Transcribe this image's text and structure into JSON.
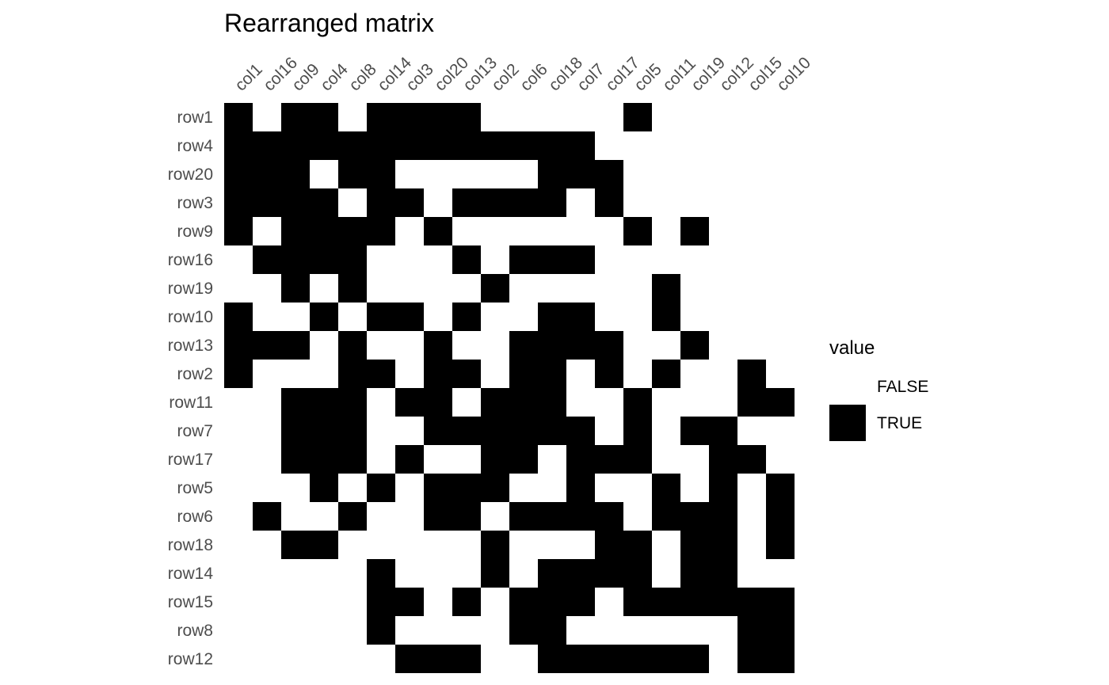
{
  "colors": {
    "true": "#000000",
    "false": "#ffffff",
    "tick_text": "#4d4d4d",
    "background": "#ffffff"
  },
  "chart_data": {
    "type": "heatmap",
    "title": "Rearranged matrix",
    "xlabel": "",
    "ylabel": "",
    "grid": false,
    "x_tick_position": "top",
    "legend_position": "right",
    "columns": [
      "col1",
      "col16",
      "col9",
      "col4",
      "col8",
      "col14",
      "col3",
      "col20",
      "col13",
      "col2",
      "col6",
      "col18",
      "col7",
      "col17",
      "col5",
      "col11",
      "col19",
      "col12",
      "col15",
      "col10"
    ],
    "rows": [
      "row1",
      "row4",
      "row20",
      "row3",
      "row9",
      "row16",
      "row19",
      "row10",
      "row13",
      "row2",
      "row11",
      "row7",
      "row17",
      "row5",
      "row6",
      "row18",
      "row14",
      "row15",
      "row8",
      "row12"
    ],
    "values": [
      [
        1,
        0,
        1,
        1,
        0,
        1,
        1,
        1,
        1,
        0,
        0,
        0,
        0,
        0,
        1,
        0,
        0,
        0,
        0,
        0
      ],
      [
        1,
        1,
        1,
        1,
        1,
        1,
        1,
        1,
        1,
        1,
        1,
        1,
        1,
        0,
        0,
        0,
        0,
        0,
        0,
        0
      ],
      [
        1,
        1,
        1,
        0,
        1,
        1,
        0,
        0,
        0,
        0,
        0,
        1,
        1,
        1,
        0,
        0,
        0,
        0,
        0,
        0
      ],
      [
        1,
        1,
        1,
        1,
        0,
        1,
        1,
        0,
        1,
        1,
        1,
        1,
        0,
        1,
        0,
        0,
        0,
        0,
        0,
        0
      ],
      [
        1,
        0,
        1,
        1,
        1,
        1,
        0,
        1,
        0,
        0,
        0,
        0,
        0,
        0,
        1,
        0,
        1,
        0,
        0,
        0
      ],
      [
        0,
        1,
        1,
        1,
        1,
        0,
        0,
        0,
        1,
        0,
        1,
        1,
        1,
        0,
        0,
        0,
        0,
        0,
        0,
        0
      ],
      [
        0,
        0,
        1,
        0,
        1,
        0,
        0,
        0,
        0,
        1,
        0,
        0,
        0,
        0,
        0,
        1,
        0,
        0,
        0,
        0
      ],
      [
        1,
        0,
        0,
        1,
        0,
        1,
        1,
        0,
        1,
        0,
        0,
        1,
        1,
        0,
        0,
        1,
        0,
        0,
        0,
        0
      ],
      [
        1,
        1,
        1,
        0,
        1,
        0,
        0,
        1,
        0,
        0,
        1,
        1,
        1,
        1,
        0,
        0,
        1,
        0,
        0,
        0
      ],
      [
        1,
        0,
        0,
        0,
        1,
        1,
        0,
        1,
        1,
        0,
        1,
        1,
        0,
        1,
        0,
        1,
        0,
        0,
        1,
        0
      ],
      [
        0,
        0,
        1,
        1,
        1,
        0,
        1,
        1,
        0,
        1,
        1,
        1,
        0,
        0,
        1,
        0,
        0,
        0,
        1,
        1
      ],
      [
        0,
        0,
        1,
        1,
        1,
        0,
        0,
        1,
        1,
        1,
        1,
        1,
        1,
        0,
        1,
        0,
        1,
        1,
        0,
        0
      ],
      [
        0,
        0,
        1,
        1,
        1,
        0,
        1,
        0,
        0,
        1,
        1,
        0,
        1,
        1,
        1,
        0,
        0,
        1,
        1,
        0
      ],
      [
        0,
        0,
        0,
        1,
        0,
        1,
        0,
        1,
        1,
        1,
        0,
        0,
        1,
        0,
        0,
        1,
        0,
        1,
        0,
        1
      ],
      [
        0,
        1,
        0,
        0,
        1,
        0,
        0,
        1,
        1,
        0,
        1,
        1,
        1,
        1,
        0,
        1,
        1,
        1,
        0,
        1
      ],
      [
        0,
        0,
        1,
        1,
        0,
        0,
        0,
        0,
        0,
        1,
        0,
        0,
        0,
        1,
        1,
        0,
        1,
        1,
        0,
        1
      ],
      [
        0,
        0,
        0,
        0,
        0,
        1,
        0,
        0,
        0,
        1,
        0,
        1,
        1,
        1,
        1,
        0,
        1,
        1,
        0,
        0
      ],
      [
        0,
        0,
        0,
        0,
        0,
        1,
        1,
        0,
        1,
        0,
        1,
        1,
        1,
        0,
        1,
        1,
        1,
        1,
        1,
        1
      ],
      [
        0,
        0,
        0,
        0,
        0,
        1,
        0,
        0,
        0,
        0,
        1,
        1,
        0,
        0,
        0,
        0,
        0,
        0,
        1,
        1
      ],
      [
        0,
        0,
        0,
        0,
        0,
        0,
        1,
        1,
        1,
        0,
        0,
        1,
        1,
        1,
        1,
        1,
        1,
        0,
        1,
        1
      ]
    ],
    "legend": {
      "title": "value",
      "entries": [
        {
          "label": "FALSE",
          "color": "#ffffff"
        },
        {
          "label": "TRUE",
          "color": "#000000"
        }
      ]
    }
  }
}
